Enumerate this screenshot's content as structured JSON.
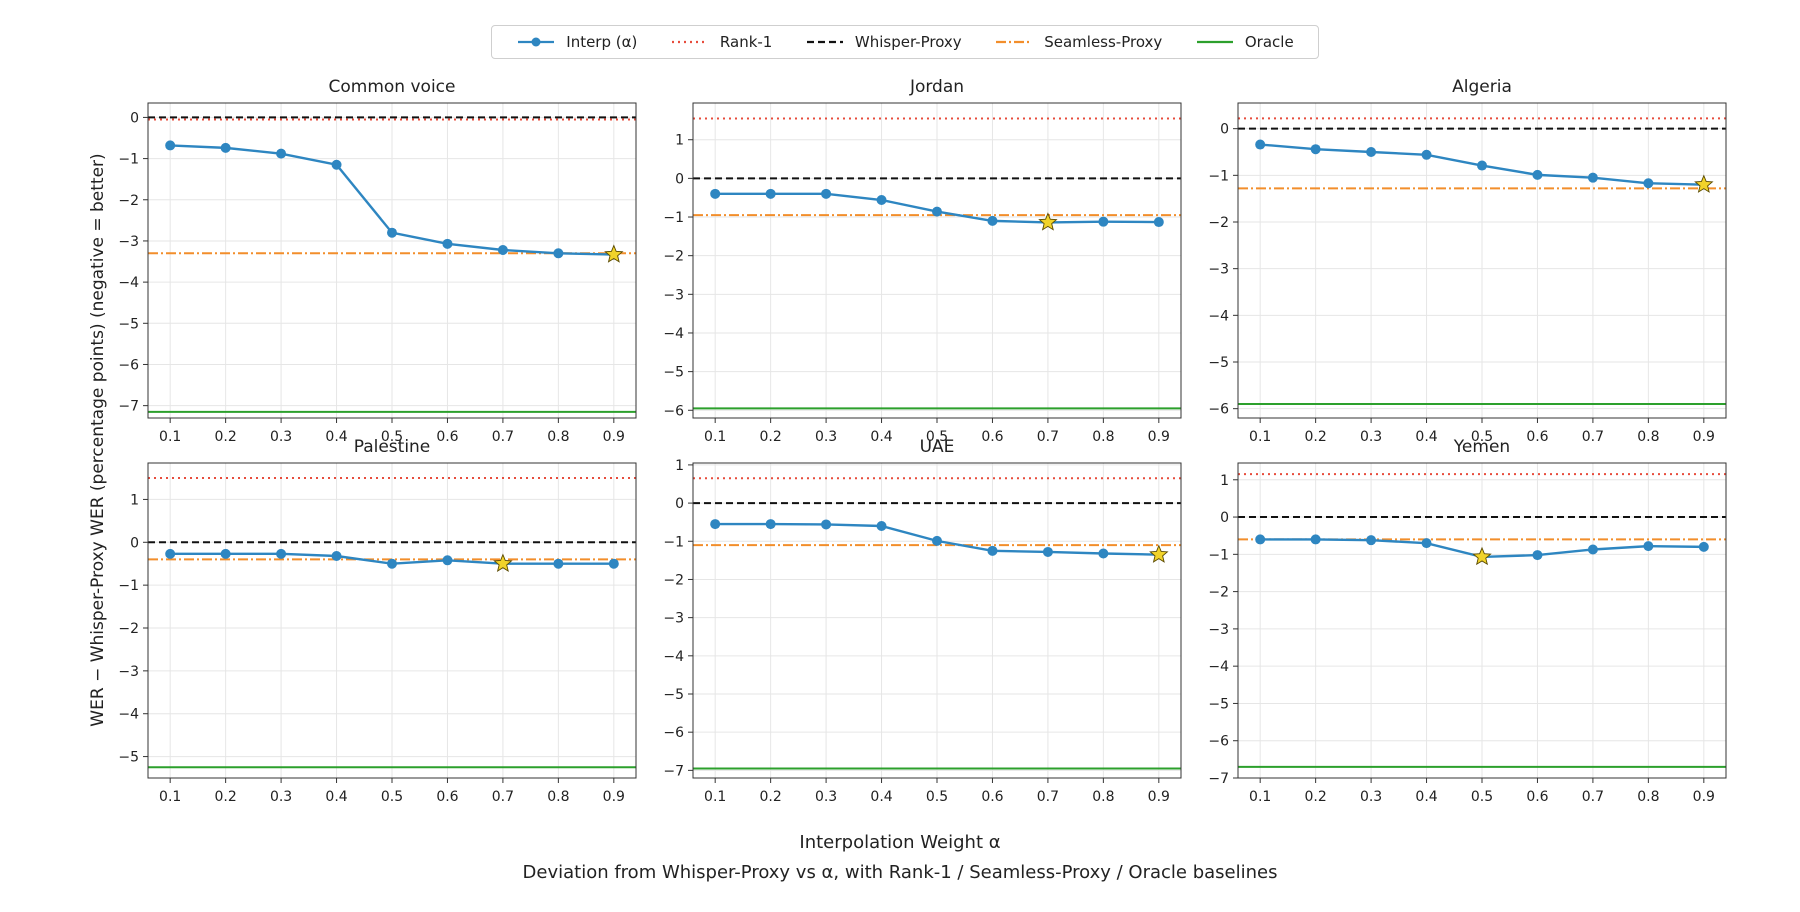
{
  "legend": {
    "interp": "Interp (α)",
    "rank1": "Rank-1",
    "whisper": "Whisper-Proxy",
    "seamless": "Seamless-Proxy",
    "oracle": "Oracle"
  },
  "colors": {
    "interp": "#2e86c1",
    "rank1": "#e74c3c",
    "whisper": "#111111",
    "seamless": "#f28e2b",
    "oracle": "#2ca02c",
    "star": "#f1d32a"
  },
  "ylabel": "WER − Whisper-Proxy WER (percentage points)  (negative = better)",
  "xlabel": "Interpolation Weight α",
  "caption": "Deviation from Whisper-Proxy vs α, with Rank-1 / Seamless-Proxy / Oracle baselines",
  "chart_data": [
    {
      "type": "line",
      "title": "Common voice",
      "x": [
        0.1,
        0.2,
        0.3,
        0.4,
        0.5,
        0.6,
        0.7,
        0.8,
        0.9
      ],
      "series": [
        {
          "name": "Interp (α)",
          "values": [
            -0.68,
            -0.74,
            -0.88,
            -1.15,
            -2.8,
            -3.07,
            -3.22,
            -3.3,
            -3.33
          ]
        }
      ],
      "best_index": 8,
      "baselines": {
        "Rank-1": -0.05,
        "Whisper-Proxy": 0,
        "Seamless-Proxy": -3.3,
        "Oracle": -7.15
      },
      "ylim": [
        -7.3,
        0.35
      ],
      "yticks": [
        0,
        -1,
        -2,
        -3,
        -4,
        -5,
        -6,
        -7
      ],
      "xlim": [
        0.06,
        0.94
      ],
      "grid": true
    },
    {
      "type": "line",
      "title": "Jordan",
      "x": [
        0.1,
        0.2,
        0.3,
        0.4,
        0.5,
        0.6,
        0.7,
        0.8,
        0.9
      ],
      "series": [
        {
          "name": "Interp (α)",
          "values": [
            -0.4,
            -0.4,
            -0.4,
            -0.56,
            -0.86,
            -1.1,
            -1.14,
            -1.12,
            -1.13
          ]
        }
      ],
      "best_index": 6,
      "baselines": {
        "Rank-1": 1.55,
        "Whisper-Proxy": 0,
        "Seamless-Proxy": -0.95,
        "Oracle": -5.95
      },
      "ylim": [
        -6.2,
        1.95
      ],
      "yticks": [
        1,
        0,
        -1,
        -2,
        -3,
        -4,
        -5,
        -6
      ],
      "xlim": [
        0.06,
        0.94
      ],
      "grid": true
    },
    {
      "type": "line",
      "title": "Algeria",
      "x": [
        0.1,
        0.2,
        0.3,
        0.4,
        0.5,
        0.6,
        0.7,
        0.8,
        0.9
      ],
      "series": [
        {
          "name": "Interp (α)",
          "values": [
            -0.34,
            -0.44,
            -0.5,
            -0.56,
            -0.79,
            -0.99,
            -1.05,
            -1.17,
            -1.2
          ]
        }
      ],
      "best_index": 8,
      "baselines": {
        "Rank-1": 0.22,
        "Whisper-Proxy": 0,
        "Seamless-Proxy": -1.28,
        "Oracle": -5.9
      },
      "ylim": [
        -6.2,
        0.55
      ],
      "yticks": [
        0,
        -1,
        -2,
        -3,
        -4,
        -5,
        -6
      ],
      "xlim": [
        0.06,
        0.94
      ],
      "grid": true
    },
    {
      "type": "line",
      "title": "Palestine",
      "x": [
        0.1,
        0.2,
        0.3,
        0.4,
        0.5,
        0.6,
        0.7,
        0.8,
        0.9
      ],
      "series": [
        {
          "name": "Interp (α)",
          "values": [
            -0.27,
            -0.27,
            -0.27,
            -0.32,
            -0.5,
            -0.42,
            -0.5,
            -0.5,
            -0.5
          ]
        }
      ],
      "best_index": 6,
      "baselines": {
        "Rank-1": 1.5,
        "Whisper-Proxy": 0,
        "Seamless-Proxy": -0.4,
        "Oracle": -5.25
      },
      "ylim": [
        -5.5,
        1.85
      ],
      "yticks": [
        1,
        0,
        -1,
        -2,
        -3,
        -4,
        -5
      ],
      "xlim": [
        0.06,
        0.94
      ],
      "grid": true
    },
    {
      "type": "line",
      "title": "UAE",
      "x": [
        0.1,
        0.2,
        0.3,
        0.4,
        0.5,
        0.6,
        0.7,
        0.8,
        0.9
      ],
      "series": [
        {
          "name": "Interp (α)",
          "values": [
            -0.55,
            -0.55,
            -0.56,
            -0.6,
            -0.99,
            -1.25,
            -1.28,
            -1.32,
            -1.35
          ]
        }
      ],
      "best_index": 8,
      "baselines": {
        "Rank-1": 0.65,
        "Whisper-Proxy": 0,
        "Seamless-Proxy": -1.1,
        "Oracle": -6.95
      },
      "ylim": [
        -7.2,
        1.05
      ],
      "yticks": [
        1,
        0,
        -1,
        -2,
        -3,
        -4,
        -5,
        -6,
        -7
      ],
      "xlim": [
        0.06,
        0.94
      ],
      "grid": true
    },
    {
      "type": "line",
      "title": "Yemen",
      "x": [
        0.1,
        0.2,
        0.3,
        0.4,
        0.5,
        0.6,
        0.7,
        0.8,
        0.9
      ],
      "series": [
        {
          "name": "Interp (α)",
          "values": [
            -0.6,
            -0.6,
            -0.62,
            -0.7,
            -1.07,
            -1.02,
            -0.87,
            -0.78,
            -0.8
          ]
        }
      ],
      "best_index": 4,
      "baselines": {
        "Rank-1": 1.15,
        "Whisper-Proxy": 0,
        "Seamless-Proxy": -0.6,
        "Oracle": -6.7
      },
      "ylim": [
        -7.0,
        1.45
      ],
      "yticks": [
        1,
        0,
        -1,
        -2,
        -3,
        -4,
        -5,
        -6,
        -7
      ],
      "xlim": [
        0.06,
        0.94
      ],
      "grid": true
    }
  ]
}
